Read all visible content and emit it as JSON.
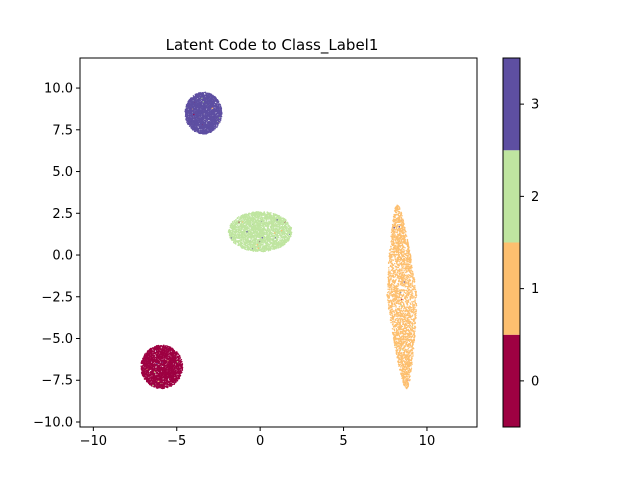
{
  "chart_data": {
    "type": "scatter",
    "title": "Latent Code to Class_Label1",
    "xlabel": "",
    "ylabel": "",
    "xlim": [
      -10.8,
      13.0
    ],
    "ylim": [
      -10.3,
      11.8
    ],
    "xticks": [
      -10,
      -5,
      0,
      5,
      10
    ],
    "xtick_labels": [
      "−10",
      "−5",
      "0",
      "5",
      "10"
    ],
    "yticks": [
      -10.0,
      -7.5,
      -5.0,
      -2.5,
      0.0,
      2.5,
      5.0,
      7.5,
      10.0
    ],
    "ytick_labels": [
      "−10.0",
      "−7.5",
      "−5.0",
      "−2.5",
      "0.0",
      "2.5",
      "5.0",
      "7.5",
      "10.0"
    ],
    "grid": false,
    "colorbar": {
      "range": [
        -0.5,
        3.5
      ],
      "ticks": [
        0,
        1,
        2,
        3
      ],
      "tick_labels": [
        "0",
        "1",
        "2",
        "3"
      ],
      "colors": [
        "#9e0142",
        "#fdbf6f",
        "#bfe5a0",
        "#5e4fa2"
      ]
    },
    "clusters": [
      {
        "class": 0,
        "center": [
          -5.9,
          -6.7
        ],
        "spread": [
          1.25,
          1.3
        ]
      },
      {
        "class": 1,
        "center": [
          8.5,
          -2.5
        ],
        "spread": [
          0.9,
          5.5
        ]
      },
      {
        "class": 2,
        "center": [
          0.0,
          1.4
        ],
        "spread": [
          1.9,
          1.2
        ]
      },
      {
        "class": 3,
        "center": [
          -3.4,
          8.5
        ],
        "spread": [
          1.1,
          1.25
        ]
      }
    ]
  }
}
